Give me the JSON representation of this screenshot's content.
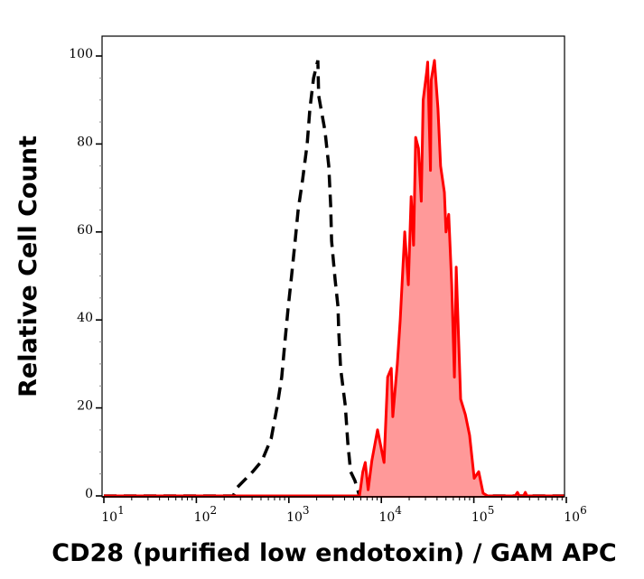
{
  "chart_data": {
    "type": "area",
    "title": "",
    "xlabel": "CD28 (purified low endotoxin) / GAM APC",
    "ylabel": "Relative Cell Count",
    "xscale": "log",
    "xlim": [
      10,
      1000000
    ],
    "ylim": [
      0,
      105
    ],
    "x_ticks": [
      {
        "base": "10",
        "exp": "1",
        "value": 10
      },
      {
        "base": "10",
        "exp": "2",
        "value": 100
      },
      {
        "base": "10",
        "exp": "3",
        "value": 1000
      },
      {
        "base": "10",
        "exp": "4",
        "value": 10000
      },
      {
        "base": "10",
        "exp": "5",
        "value": 100000
      },
      {
        "base": "10",
        "exp": "6",
        "value": 1000000
      }
    ],
    "y_ticks": [
      "0",
      "20",
      "40",
      "60",
      "80",
      "100"
    ],
    "grid": false,
    "legend": "none",
    "series": [
      {
        "style": "dashed-line",
        "color": "#000000",
        "points": [
          [
            10,
            0
          ],
          [
            250,
            0
          ],
          [
            279,
            2
          ],
          [
            407,
            5.5
          ],
          [
            513,
            8
          ],
          [
            643,
            13
          ],
          [
            750,
            20.5
          ],
          [
            838,
            27
          ],
          [
            917,
            36
          ],
          [
            979,
            42.5
          ],
          [
            1070,
            50
          ],
          [
            1170,
            58
          ],
          [
            1260,
            65
          ],
          [
            1410,
            72
          ],
          [
            1580,
            80
          ],
          [
            1690,
            88
          ],
          [
            1850,
            95
          ],
          [
            2060,
            99
          ],
          [
            2100,
            91
          ],
          [
            2460,
            83
          ],
          [
            2700,
            75
          ],
          [
            2830,
            66
          ],
          [
            2900,
            58
          ],
          [
            3170,
            49
          ],
          [
            3400,
            43
          ],
          [
            3460,
            37.6
          ],
          [
            3630,
            29
          ],
          [
            4080,
            20.5
          ],
          [
            4340,
            12
          ],
          [
            4660,
            5.5
          ],
          [
            5170,
            3.5
          ],
          [
            5800,
            0
          ],
          [
            1000000,
            0
          ]
        ]
      },
      {
        "style": "filled",
        "color": "#ff0000",
        "fill": "#ff9999",
        "points": [
          [
            10,
            0
          ],
          [
            5800,
            0
          ],
          [
            6300,
            5.5
          ],
          [
            6700,
            7.6
          ],
          [
            7200,
            1.4
          ],
          [
            7900,
            8
          ],
          [
            9100,
            15
          ],
          [
            10700,
            7.6
          ],
          [
            11700,
            27
          ],
          [
            12800,
            29
          ],
          [
            13300,
            18
          ],
          [
            14900,
            30
          ],
          [
            16000,
            40
          ],
          [
            17900,
            60
          ],
          [
            19600,
            48
          ],
          [
            21000,
            68
          ],
          [
            22300,
            57
          ],
          [
            23500,
            81.5
          ],
          [
            25200,
            79
          ],
          [
            27000,
            67
          ],
          [
            28300,
            90
          ],
          [
            31000,
            96.5
          ],
          [
            31700,
            98.6
          ],
          [
            34000,
            74
          ],
          [
            34600,
            94.5
          ],
          [
            37500,
            99
          ],
          [
            41000,
            88
          ],
          [
            43700,
            75
          ],
          [
            48000,
            69
          ],
          [
            50000,
            60
          ],
          [
            53500,
            64
          ],
          [
            57600,
            48
          ],
          [
            61700,
            27
          ],
          [
            64500,
            52
          ],
          [
            72000,
            22
          ],
          [
            81000,
            18.5
          ],
          [
            90000,
            13.8
          ],
          [
            101000,
            4
          ],
          [
            113000,
            5.5
          ],
          [
            126000,
            0.6
          ],
          [
            141000,
            0
          ],
          [
            280000,
            0
          ],
          [
            296000,
            0.8
          ],
          [
            310000,
            0
          ],
          [
            345000,
            0
          ],
          [
            360000,
            0.8
          ],
          [
            375000,
            0
          ],
          [
            1000000,
            0
          ]
        ]
      }
    ]
  }
}
